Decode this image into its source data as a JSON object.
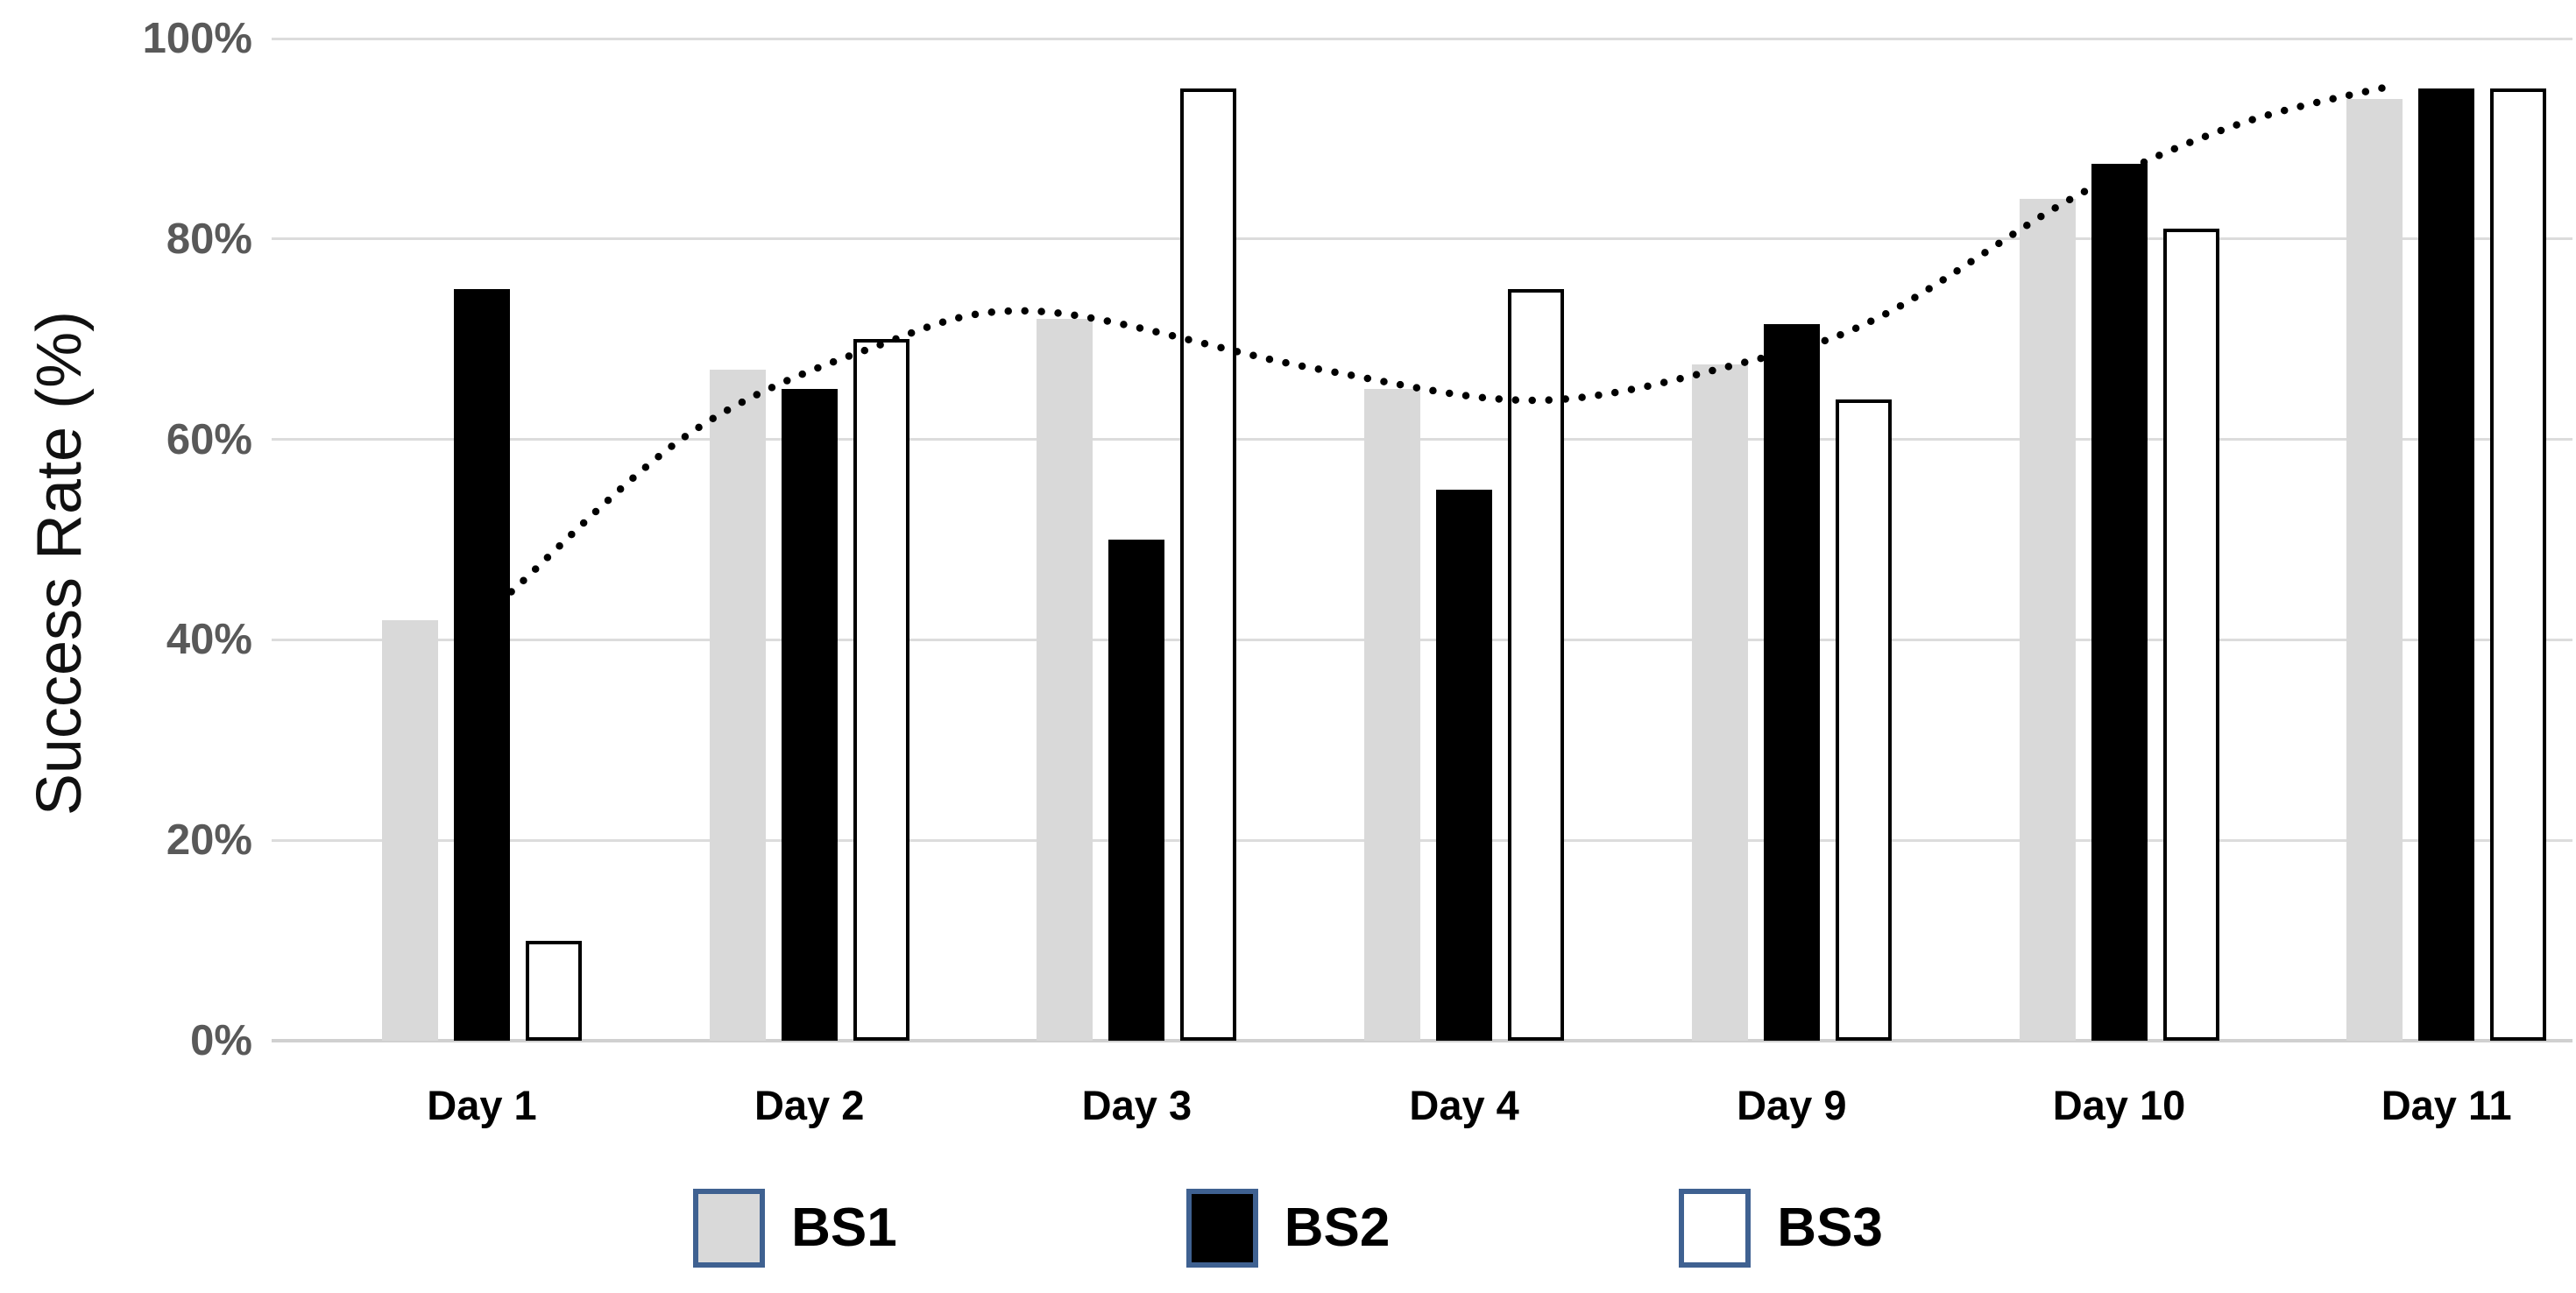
{
  "chart_data": {
    "type": "bar",
    "title": "",
    "xlabel": "",
    "ylabel": "Success Rate (%)",
    "categories": [
      "Day 1",
      "Day 2",
      "Day 3",
      "Day 4",
      "Day 9",
      "Day 10",
      "Day 11"
    ],
    "series": [
      {
        "name": "BS1",
        "fill": "#d9d9d9",
        "border": "none",
        "values": [
          42,
          67,
          72,
          65,
          67.5,
          84,
          94
        ]
      },
      {
        "name": "BS2",
        "fill": "#000000",
        "border": "none",
        "values": [
          75,
          65,
          50,
          55,
          71.5,
          87.5,
          95
        ]
      },
      {
        "name": "BS3",
        "fill": "#ffffff",
        "border": "#000000",
        "values": [
          10,
          70,
          95,
          75,
          64,
          81,
          95
        ]
      }
    ],
    "ylim": [
      0,
      100
    ],
    "ytick_values": [
      0,
      20,
      40,
      60,
      80,
      100
    ],
    "ytick_labels": [
      "0%",
      "20%",
      "40%",
      "60%",
      "80%",
      "100%"
    ],
    "grid": "horizontal",
    "legend_position": "bottom",
    "trendline": {
      "style": "dotted",
      "color": "#000000",
      "points": [
        [
          0.09,
          44.8
        ],
        [
          0.63,
          60.5
        ],
        [
          1.18,
          69.0
        ],
        [
          1.69,
          72.8
        ],
        [
          2.54,
          67.1
        ],
        [
          3.23,
          63.9
        ],
        [
          3.87,
          67.8
        ],
        [
          4.28,
          72.4
        ],
        [
          4.87,
          84.3
        ],
        [
          5.37,
          91.5
        ],
        [
          5.85,
          95.4
        ]
      ]
    }
  },
  "legend": {
    "border_color": "#3f6191",
    "items": [
      {
        "label": "BS1",
        "fill": "#d9d9d9"
      },
      {
        "label": "BS2",
        "fill": "#000000"
      },
      {
        "label": "BS3",
        "fill": "#ffffff"
      }
    ]
  },
  "colors": {
    "background": "#ffffff",
    "gridline": "#dcdcdc",
    "tick_text": "#595959",
    "axis_text": "#000000"
  }
}
